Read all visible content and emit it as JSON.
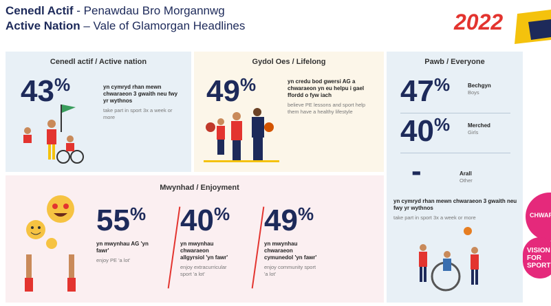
{
  "header": {
    "title_cy": "Cenedl Actif",
    "subtitle_cy": "- Penawdau Bro Morgannwg",
    "title_en": "Active Nation",
    "subtitle_en": "– Vale of Glamorgan Headlines",
    "year": "2022"
  },
  "active": {
    "heading": "Cenedl actif / Active nation",
    "number": "43",
    "unit": "%",
    "text_cy": "yn cymryd rhan mewn chwaraeon 3 gwaith neu fwy yr wythnos",
    "text_en": "take part in sport 3x a week or more"
  },
  "lifelong": {
    "heading": "Gydol Oes / Lifelong",
    "number": "49",
    "unit": "%",
    "text_cy": "yn credu bod gwersi AG a chwaraeon yn eu helpu i gael ffordd o fyw iach",
    "text_en": "believe PE lessons and sport help them have a healthy lifestyle"
  },
  "everyone": {
    "heading": "Pawb / Everyone",
    "rows": [
      {
        "number": "47",
        "unit": "%",
        "label_cy": "Bechgyn",
        "label_en": "Boys"
      },
      {
        "number": "40",
        "unit": "%",
        "label_cy": "Merched",
        "label_en": "Girls"
      },
      {
        "number": "-",
        "label_cy": "Arall",
        "label_en": "Other"
      }
    ],
    "text_cy": "yn cymryd rhan mewn chwaraeon 3 gwaith neu fwy yr wythnos",
    "text_en": "take part in sport 3x a week or more"
  },
  "enjoyment": {
    "heading": "Mwynhad / Enjoyment",
    "stats": [
      {
        "number": "55",
        "unit": "%",
        "text_cy": "yn mwynhau AG 'yn fawr'",
        "text_en": "enjoy PE 'a lot'"
      },
      {
        "number": "40",
        "unit": "%",
        "text_cy": "yn mwynhau chwaraeon allgyrsiol 'yn fawr'",
        "text_en": "enjoy extracurricular sport 'a lot'"
      },
      {
        "number": "49",
        "unit": "%",
        "text_cy": "yn mwynhau chwaraeon cymunedol 'yn fawr'",
        "text_en": "enjoy community sport 'a lot'"
      }
    ]
  },
  "badges": [
    "CHWARAEON",
    "VISION FOR SPORT"
  ]
}
